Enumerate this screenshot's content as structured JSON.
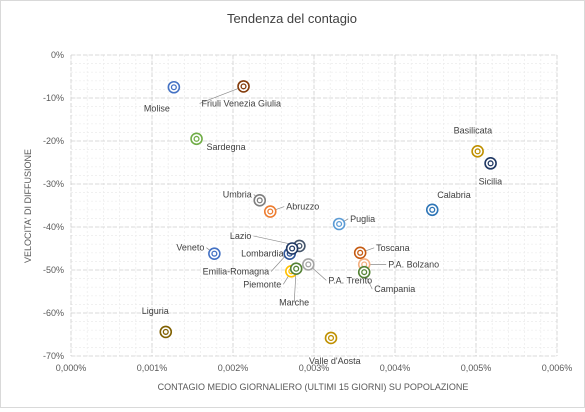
{
  "chart_data": {
    "type": "scatter",
    "title": "Tendenza del contagio",
    "xlabel": "CONTAGIO MEDIO GIORNALIERO (ULTIMI 15 GIORNI) SU POPOLAZIONE",
    "ylabel": "VELOCITA' DI DIFFUSIONE",
    "xlim": [
      0,
      0.006
    ],
    "ylim": [
      -0.7,
      0
    ],
    "x_ticks": [
      "0,000%",
      "0,001%",
      "0,002%",
      "0,003%",
      "0,004%",
      "0,005%",
      "0,006%"
    ],
    "y_ticks": [
      "0%",
      "-10%",
      "-20%",
      "-30%",
      "-40%",
      "-50%",
      "-60%",
      "-70%"
    ],
    "grid": "major and minor, dashed",
    "legend": "none",
    "points": [
      {
        "label": "Molise",
        "x": 0.00127,
        "y": -0.075,
        "color": "#4472c4"
      },
      {
        "label": "Friuli Venezia Giulia",
        "x": 0.00213,
        "y": -0.073,
        "color": "#843c0c"
      },
      {
        "label": "Sardegna",
        "x": 0.00155,
        "y": -0.195,
        "color": "#70ad47"
      },
      {
        "label": "Basilicata",
        "x": 0.00502,
        "y": -0.224,
        "color": "#bf9000"
      },
      {
        "label": "Sicilia",
        "x": 0.00518,
        "y": -0.252,
        "color": "#203864"
      },
      {
        "label": "Umbria",
        "x": 0.00233,
        "y": -0.338,
        "color": "#7f7f7f"
      },
      {
        "label": "Abruzzo",
        "x": 0.00246,
        "y": -0.364,
        "color": "#ed7d31"
      },
      {
        "label": "Calabria",
        "x": 0.00446,
        "y": -0.36,
        "color": "#2e75b6"
      },
      {
        "label": "Puglia",
        "x": 0.00331,
        "y": -0.393,
        "color": "#5b9bd5"
      },
      {
        "label": "Lazio",
        "x": 0.00282,
        "y": -0.444,
        "color": "#44546a"
      },
      {
        "label": "Veneto",
        "x": 0.00177,
        "y": -0.462,
        "color": "#4472c4"
      },
      {
        "label": "Lombardia",
        "x": 0.0027,
        "y": -0.462,
        "color": "#2f5597"
      },
      {
        "label": "Emilia-Romagna",
        "x": 0.00273,
        "y": -0.45,
        "color": "#1f3864"
      },
      {
        "label": "Toscana",
        "x": 0.00357,
        "y": -0.46,
        "color": "#c55a11"
      },
      {
        "label": "P.A. Bolzano",
        "x": 0.00362,
        "y": -0.487,
        "color": "#f4b183"
      },
      {
        "label": "Campania",
        "x": 0.00362,
        "y": -0.505,
        "color": "#548235"
      },
      {
        "label": "Piemonte",
        "x": 0.00272,
        "y": -0.503,
        "color": "#ffc000"
      },
      {
        "label": "Marche",
        "x": 0.00278,
        "y": -0.497,
        "color": "#548235"
      },
      {
        "label": "P.A. Trento",
        "x": 0.00293,
        "y": -0.487,
        "color": "#a5a5a5"
      },
      {
        "label": "Liguria",
        "x": 0.00117,
        "y": -0.644,
        "color": "#806000"
      },
      {
        "label": "Valle d'Aosta",
        "x": 0.00321,
        "y": -0.658,
        "color": "#bf9000"
      }
    ]
  }
}
